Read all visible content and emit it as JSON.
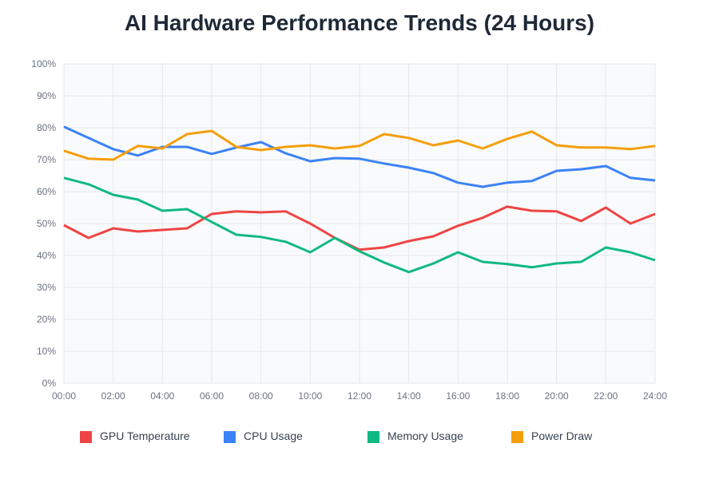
{
  "chart_data": {
    "type": "line",
    "title": "AI Hardware Performance Trends (24 Hours)",
    "xlabel": "",
    "ylabel": "",
    "x": [
      "00:00",
      "01:00",
      "02:00",
      "03:00",
      "04:00",
      "05:00",
      "06:00",
      "07:00",
      "08:00",
      "09:00",
      "10:00",
      "11:00",
      "12:00",
      "13:00",
      "14:00",
      "15:00",
      "16:00",
      "17:00",
      "18:00",
      "19:00",
      "20:00",
      "21:00",
      "22:00",
      "23:00",
      "24:00"
    ],
    "x_tick_labels": [
      "00:00",
      "02:00",
      "04:00",
      "06:00",
      "08:00",
      "10:00",
      "12:00",
      "14:00",
      "16:00",
      "18:00",
      "20:00",
      "22:00",
      "24:00"
    ],
    "y_tick_labels": [
      "0%",
      "10%",
      "20%",
      "30%",
      "40%",
      "50%",
      "60%",
      "70%",
      "80%",
      "90%",
      "100%"
    ],
    "ylim": [
      0,
      100
    ],
    "grid": true,
    "legend_position": "bottom",
    "series": [
      {
        "name": "GPU Temperature",
        "color": "#ef4444",
        "values": [
          49.5,
          45.5,
          48.5,
          47.5,
          48,
          48.5,
          53,
          53.8,
          53.5,
          53.8,
          50,
          45.5,
          41.8,
          42.5,
          44.5,
          46,
          49.3,
          51.8,
          55.3,
          54,
          53.8,
          50.8,
          55,
          50,
          53
        ]
      },
      {
        "name": "CPU Usage",
        "color": "#3b82f6",
        "values": [
          80.3,
          76.8,
          73.3,
          71.3,
          74,
          74,
          71.8,
          73.8,
          75.5,
          72,
          69.5,
          70.5,
          70.3,
          68.8,
          67.5,
          65.8,
          62.8,
          61.5,
          62.8,
          63.3,
          66.5,
          67,
          68,
          64.3,
          63.5
        ]
      },
      {
        "name": "Memory Usage",
        "color": "#10b981",
        "values": [
          64.3,
          62.3,
          59,
          57.5,
          54,
          54.5,
          50.5,
          46.5,
          45.8,
          44.3,
          41,
          45.5,
          41.3,
          37.8,
          34.8,
          37.5,
          41,
          38,
          37.3,
          36.3,
          37.5,
          38,
          42.5,
          41,
          38.5
        ]
      },
      {
        "name": "Power Draw",
        "color": "#f59e0b",
        "values": [
          72.8,
          70.3,
          70,
          74.3,
          73.5,
          78,
          79,
          74,
          73,
          74,
          74.5,
          73.5,
          74.3,
          78,
          76.8,
          74.5,
          76,
          73.5,
          76.5,
          78.8,
          74.5,
          73.8,
          73.8,
          73.3,
          74.3
        ]
      }
    ]
  },
  "colors": {
    "plot_background": "#f9fafb",
    "grid": "#e5e7eb",
    "tick_text": "#6b7280",
    "title_text": "#1f2937"
  }
}
